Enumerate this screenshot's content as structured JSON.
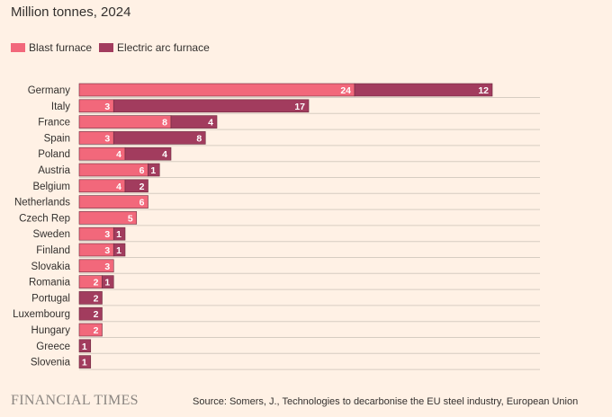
{
  "subtitle": "Million tonnes, 2024",
  "footer": {
    "logo": "FINANCIAL TIMES",
    "source": "Source: Somers, J., Technologies to decarbonise the EU steel industry, European Union"
  },
  "colors": {
    "background": "#fff1e5",
    "blast_furnace": "#f2687b",
    "electric_arc_furnace": "#a23c5e",
    "gridline": "#d6ccc2",
    "label_text": "#ffffff"
  },
  "chart_data": {
    "type": "bar",
    "orientation": "horizontal",
    "stacked": true,
    "legend_position": "top-left",
    "grid": true,
    "categories": [
      "Germany",
      "Italy",
      "France",
      "Spain",
      "Poland",
      "Austria",
      "Belgium",
      "Netherlands",
      "Czech Rep",
      "Sweden",
      "Finland",
      "Slovakia",
      "Romania",
      "Portugal",
      "Luxembourg",
      "Hungary",
      "Greece",
      "Slovenia"
    ],
    "series": [
      {
        "name": "Blast furnace",
        "values": [
          24,
          3,
          8,
          3,
          4,
          6,
          4,
          6,
          5,
          3,
          3,
          3,
          2,
          0,
          0,
          2,
          0,
          0
        ]
      },
      {
        "name": "Electric arc furnace",
        "values": [
          12,
          17,
          4,
          8,
          4,
          1,
          2,
          0,
          0,
          1,
          1,
          0,
          1,
          2,
          2,
          0,
          1,
          1
        ]
      }
    ],
    "xlim": [
      0,
      40
    ]
  }
}
